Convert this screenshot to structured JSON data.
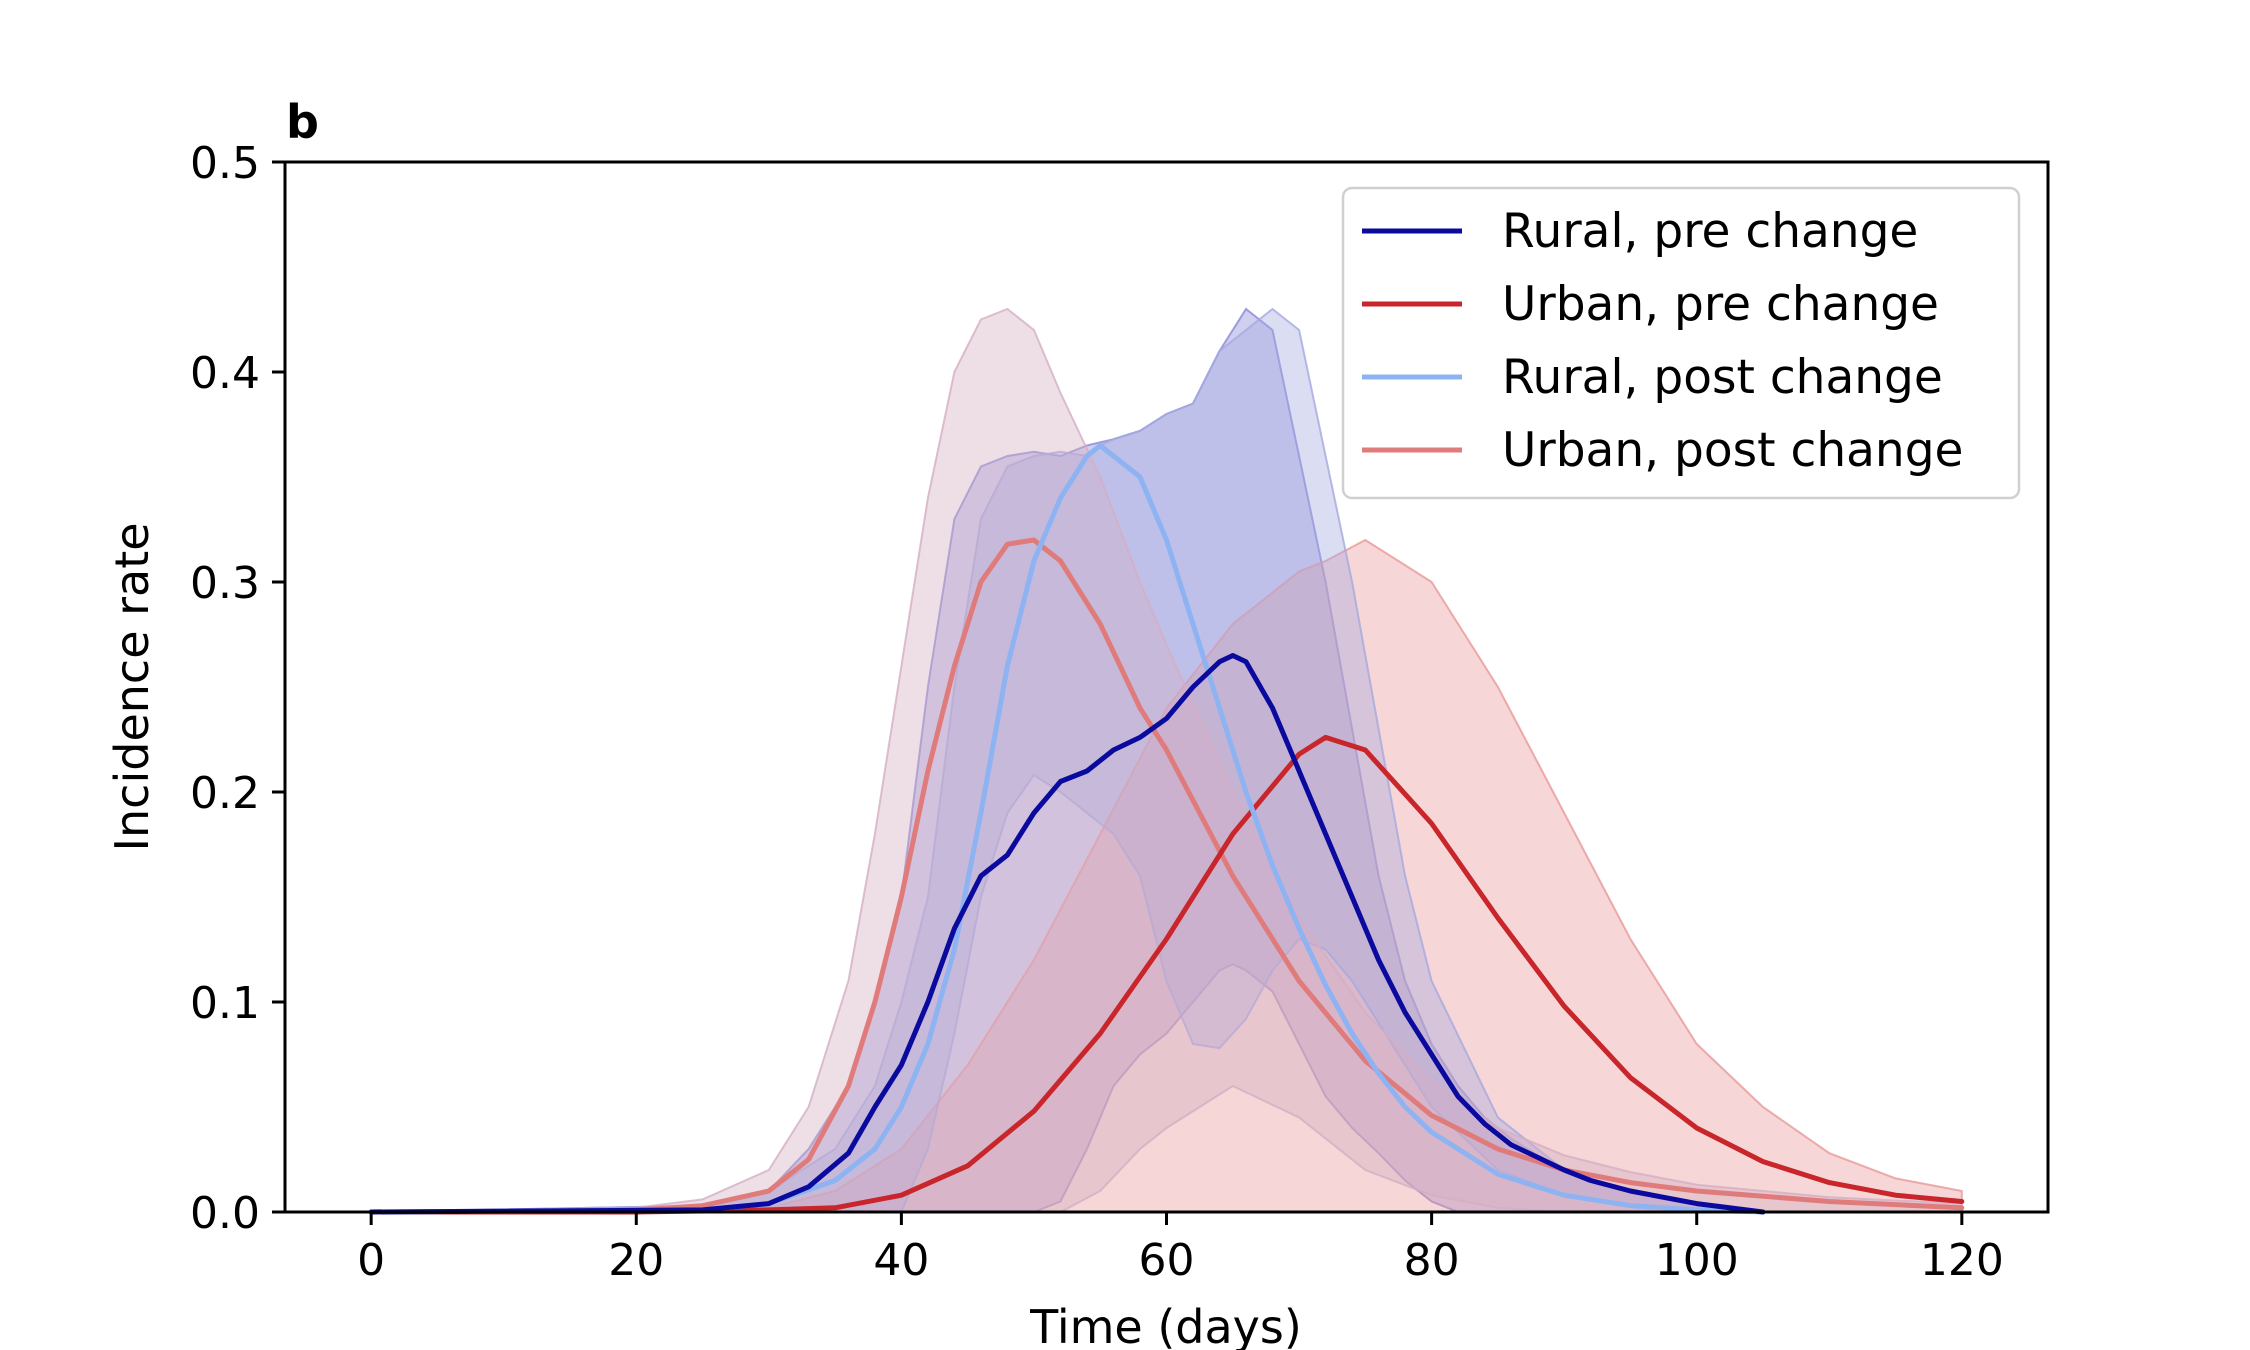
{
  "panel_label": "b",
  "chart_data": {
    "type": "line",
    "title": "",
    "xlabel": "Time (days)",
    "ylabel": "Incidence rate",
    "xlim": [
      -6.5,
      126.5
    ],
    "ylim": [
      0,
      0.5
    ],
    "xticks": [
      0,
      20,
      40,
      60,
      80,
      100,
      120
    ],
    "yticks": [
      0.0,
      0.1,
      0.2,
      0.3,
      0.4,
      0.5
    ],
    "xtick_labels": [
      "0",
      "20",
      "40",
      "60",
      "80",
      "100",
      "120"
    ],
    "ytick_labels": [
      "0.0",
      "0.1",
      "0.2",
      "0.3",
      "0.4",
      "0.5"
    ],
    "grid": false,
    "legend_position": "top-right",
    "series": [
      {
        "name": "Rural, pre change",
        "color": "#0a0a9e",
        "band_color": "#8a88d6",
        "x": [
          0,
          25,
          30,
          33,
          36,
          38,
          40,
          42,
          44,
          46,
          48,
          50,
          52,
          54,
          56,
          58,
          60,
          62,
          64,
          65,
          66,
          68,
          70,
          72,
          74,
          76,
          78,
          80,
          82,
          84,
          86,
          88,
          90,
          92,
          95,
          100,
          105
        ],
        "y": [
          0,
          0.001,
          0.004,
          0.012,
          0.028,
          0.05,
          0.07,
          0.1,
          0.135,
          0.16,
          0.17,
          0.19,
          0.205,
          0.21,
          0.22,
          0.226,
          0.235,
          0.25,
          0.262,
          0.265,
          0.262,
          0.24,
          0.21,
          0.18,
          0.15,
          0.12,
          0.095,
          0.075,
          0.055,
          0.042,
          0.032,
          0.026,
          0.02,
          0.015,
          0.01,
          0.004,
          0
        ],
        "band_lower": [
          0,
          0,
          0,
          0,
          0,
          0,
          0,
          0,
          0,
          0,
          0,
          0,
          0.005,
          0.03,
          0.06,
          0.075,
          0.085,
          0.1,
          0.115,
          0.118,
          0.115,
          0.105,
          0.08,
          0.055,
          0.04,
          0.028,
          0.015,
          0.005,
          0,
          0,
          0,
          0,
          0,
          0,
          0,
          0,
          0
        ],
        "band_upper": [
          0,
          0.003,
          0.01,
          0.03,
          0.06,
          0.1,
          0.15,
          0.25,
          0.33,
          0.355,
          0.36,
          0.362,
          0.36,
          0.365,
          0.368,
          0.372,
          0.38,
          0.385,
          0.41,
          0.42,
          0.43,
          0.42,
          0.36,
          0.3,
          0.23,
          0.16,
          0.11,
          0.08,
          0.06,
          0.045,
          0.035,
          0.027,
          0.02,
          0.015,
          0.01,
          0.004,
          0
        ]
      },
      {
        "name": "Urban, pre change",
        "color": "#c8262b",
        "band_color": "#e89898",
        "x": [
          0,
          20,
          30,
          35,
          40,
          45,
          50,
          55,
          60,
          65,
          70,
          72,
          75,
          80,
          85,
          90,
          95,
          100,
          105,
          110,
          115,
          120
        ],
        "y": [
          0,
          0,
          0.001,
          0.002,
          0.008,
          0.022,
          0.048,
          0.085,
          0.13,
          0.18,
          0.218,
          0.226,
          0.22,
          0.185,
          0.14,
          0.098,
          0.064,
          0.04,
          0.024,
          0.014,
          0.008,
          0.005
        ],
        "band_lower": [
          0,
          0,
          0,
          0,
          0,
          0,
          0,
          0,
          0,
          0,
          0,
          0,
          0,
          0,
          0,
          0,
          0,
          0,
          0,
          0,
          0,
          0
        ],
        "band_upper": [
          0,
          0,
          0.002,
          0.01,
          0.03,
          0.07,
          0.12,
          0.18,
          0.24,
          0.28,
          0.305,
          0.31,
          0.32,
          0.3,
          0.25,
          0.19,
          0.13,
          0.08,
          0.05,
          0.028,
          0.016,
          0.01
        ]
      },
      {
        "name": "Rural, post change",
        "color": "#8eb3f2",
        "band_color": "#a5a9e0",
        "x": [
          0,
          25,
          30,
          35,
          38,
          40,
          42,
          44,
          46,
          48,
          50,
          52,
          54,
          55,
          56,
          58,
          60,
          62,
          64,
          66,
          68,
          70,
          72,
          74,
          76,
          78,
          80,
          85,
          90,
          95,
          100,
          105
        ],
        "y": [
          0,
          0.001,
          0.004,
          0.015,
          0.03,
          0.05,
          0.08,
          0.125,
          0.19,
          0.26,
          0.31,
          0.34,
          0.36,
          0.365,
          0.36,
          0.35,
          0.32,
          0.28,
          0.24,
          0.2,
          0.165,
          0.135,
          0.108,
          0.085,
          0.066,
          0.05,
          0.038,
          0.018,
          0.008,
          0.003,
          0.001,
          0
        ],
        "band_lower": [
          0,
          0,
          0,
          0,
          0,
          0,
          0.03,
          0.085,
          0.15,
          0.19,
          0.208,
          0.2,
          0.19,
          0.185,
          0.18,
          0.16,
          0.11,
          0.08,
          0.078,
          0.092,
          0.115,
          0.13,
          0.125,
          0.11,
          0.09,
          0.07,
          0.05,
          0.02,
          0.008,
          0.003,
          0.001,
          0
        ],
        "band_upper": [
          0,
          0.003,
          0.01,
          0.03,
          0.06,
          0.1,
          0.15,
          0.25,
          0.33,
          0.355,
          0.36,
          0.362,
          0.36,
          0.365,
          0.368,
          0.372,
          0.38,
          0.385,
          0.41,
          0.42,
          0.43,
          0.42,
          0.36,
          0.3,
          0.23,
          0.16,
          0.11,
          0.045,
          0.02,
          0.01,
          0.004,
          0
        ]
      },
      {
        "name": "Urban, post change",
        "color": "#e07b7b",
        "band_color": "#d4aec3",
        "x": [
          0,
          15,
          20,
          25,
          30,
          33,
          36,
          38,
          40,
          42,
          44,
          46,
          48,
          50,
          52,
          55,
          58,
          60,
          65,
          70,
          75,
          80,
          85,
          90,
          95,
          100,
          110,
          120
        ],
        "y": [
          0,
          0,
          0.001,
          0.003,
          0.01,
          0.025,
          0.06,
          0.1,
          0.15,
          0.21,
          0.26,
          0.3,
          0.318,
          0.32,
          0.31,
          0.28,
          0.24,
          0.22,
          0.16,
          0.11,
          0.072,
          0.046,
          0.03,
          0.02,
          0.014,
          0.01,
          0.005,
          0.002
        ],
        "band_lower": [
          0,
          0,
          0,
          0,
          0,
          0,
          0,
          0,
          0,
          0,
          0,
          0,
          0,
          0,
          0,
          0.01,
          0.03,
          0.04,
          0.06,
          0.045,
          0.02,
          0.008,
          0.002,
          0,
          0,
          0,
          0,
          0
        ],
        "band_upper": [
          0,
          0,
          0.002,
          0.006,
          0.02,
          0.05,
          0.11,
          0.18,
          0.26,
          0.34,
          0.4,
          0.425,
          0.43,
          0.42,
          0.39,
          0.35,
          0.3,
          0.27,
          0.2,
          0.14,
          0.095,
          0.062,
          0.04,
          0.027,
          0.019,
          0.013,
          0.007,
          0.004
        ]
      }
    ]
  }
}
